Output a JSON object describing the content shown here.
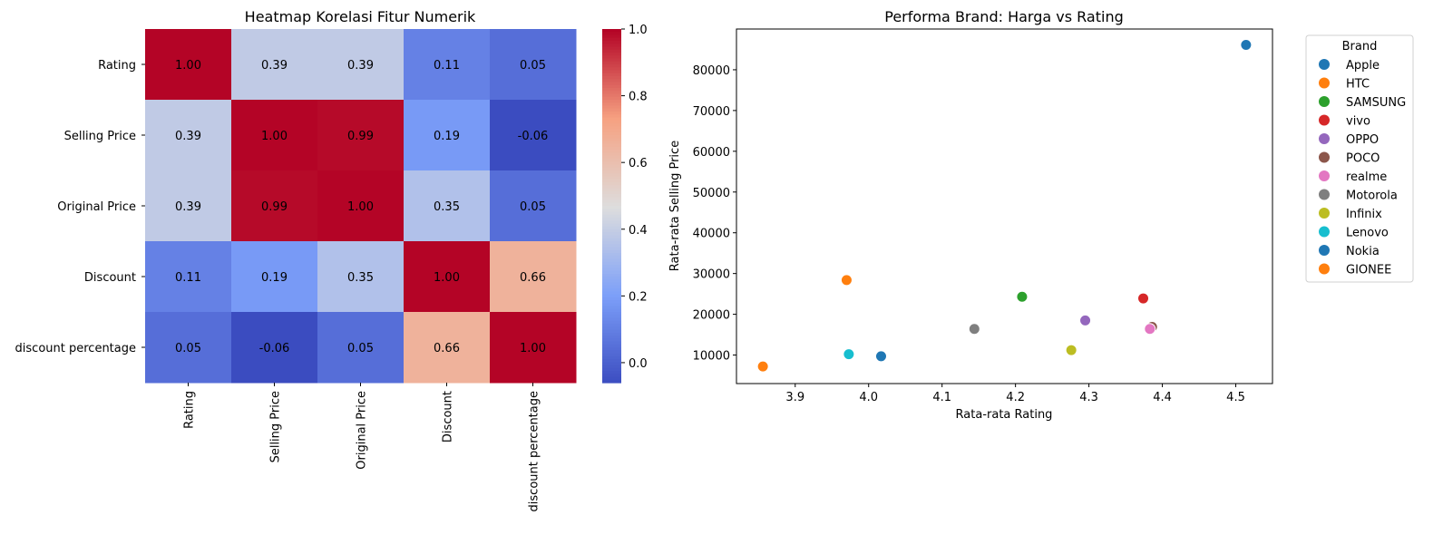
{
  "chart_data": [
    {
      "type": "heatmap",
      "title": "Heatmap Korelasi Fitur Numerik",
      "rows": [
        "Rating",
        "Selling Price",
        "Original Price",
        "Discount",
        "discount percentage"
      ],
      "columns": [
        "Rating",
        "Selling Price",
        "Original Price",
        "Discount",
        "discount percentage"
      ],
      "values": [
        [
          1.0,
          0.39,
          0.39,
          0.11,
          0.05
        ],
        [
          0.39,
          1.0,
          0.99,
          0.19,
          -0.06
        ],
        [
          0.39,
          0.99,
          1.0,
          0.35,
          0.05
        ],
        [
          0.11,
          0.19,
          0.35,
          1.0,
          0.66
        ],
        [
          0.05,
          -0.06,
          0.05,
          0.66,
          1.0
        ]
      ],
      "colorbar": {
        "min": -0.06,
        "max": 1.0,
        "ticks": [
          0.0,
          0.2,
          0.4,
          0.6,
          0.8,
          1.0
        ],
        "colormap": "coolwarm"
      }
    },
    {
      "type": "scatter",
      "title": "Performa Brand: Harga vs Rating",
      "xlabel": "Rata-rata Rating",
      "ylabel": "Rata-rata Selling Price",
      "xlim": [
        3.82,
        4.55
      ],
      "ylim": [
        3000,
        90000
      ],
      "xticks": [
        3.9,
        4.0,
        4.1,
        4.2,
        4.3,
        4.4,
        4.5
      ],
      "yticks": [
        10000,
        20000,
        30000,
        40000,
        50000,
        60000,
        70000,
        80000
      ],
      "legend_title": "Brand",
      "legend_position": "outside-right",
      "points": [
        {
          "name": "Apple",
          "x": 4.514,
          "y": 86100,
          "color": "#1f77b4"
        },
        {
          "name": "HTC",
          "x": 3.97,
          "y": 28400,
          "color": "#ff7f0e"
        },
        {
          "name": "SAMSUNG",
          "x": 4.209,
          "y": 24300,
          "color": "#2ca02c"
        },
        {
          "name": "vivo",
          "x": 4.374,
          "y": 23900,
          "color": "#d62728"
        },
        {
          "name": "OPPO",
          "x": 4.295,
          "y": 18500,
          "color": "#9467bd"
        },
        {
          "name": "POCO",
          "x": 4.386,
          "y": 16900,
          "color": "#8c564b"
        },
        {
          "name": "realme",
          "x": 4.383,
          "y": 16400,
          "color": "#e377c2"
        },
        {
          "name": "Motorola",
          "x": 4.144,
          "y": 16400,
          "color": "#7f7f7f"
        },
        {
          "name": "Infinix",
          "x": 4.276,
          "y": 11200,
          "color": "#bcbd22"
        },
        {
          "name": "Lenovo",
          "x": 3.973,
          "y": 10200,
          "color": "#17becf"
        },
        {
          "name": "Nokia",
          "x": 4.017,
          "y": 9700,
          "color": "#1f77b4"
        },
        {
          "name": "GIONEE",
          "x": 3.856,
          "y": 7200,
          "color": "#ff7f0e"
        }
      ]
    }
  ]
}
